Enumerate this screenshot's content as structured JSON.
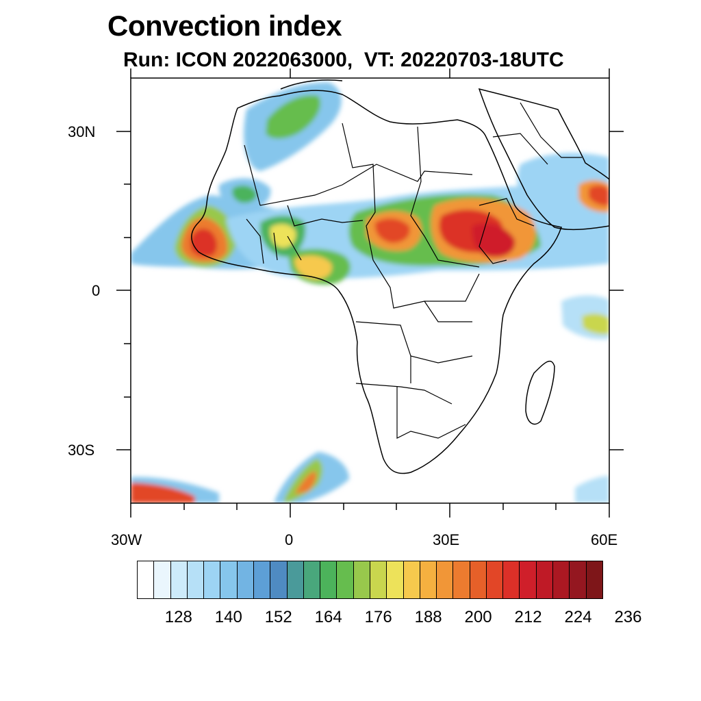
{
  "figure": {
    "title": "Convection index",
    "subtitle": "Run: ICON 2022063000,  VT: 20220703-18UTC"
  },
  "axes": {
    "lon_labels": [
      "30W",
      "0",
      "30E",
      "60E"
    ],
    "lat_labels": [
      "30N",
      "0",
      "30S"
    ]
  },
  "legend": {
    "tick_labels": [
      "128",
      "140",
      "152",
      "164",
      "176",
      "188",
      "200",
      "212",
      "224",
      "236"
    ],
    "colors": [
      "#ffffff",
      "#eaf6fd",
      "#cdebfa",
      "#b6e0f7",
      "#9dd4f4",
      "#86c6ec",
      "#72b4e3",
      "#5d9fd6",
      "#4f8bc2",
      "#4a9a9a",
      "#49a77c",
      "#4cb35b",
      "#66bd4e",
      "#98c84c",
      "#c9d64e",
      "#ede25a",
      "#f6c94d",
      "#f5b040",
      "#f19637",
      "#ec7b2f",
      "#e66029",
      "#e24627",
      "#dc3028",
      "#cf1f2a",
      "#bf1a26",
      "#ab1822",
      "#941720",
      "#7e1619"
    ]
  },
  "chart_data": {
    "type": "heatmap",
    "title": "Convection index",
    "subtitle": "Run: ICON 2022063000,  VT: 20220703-18UTC",
    "projection": "cylindrical equidistant",
    "lon_range": [
      -30,
      60
    ],
    "lat_range": [
      -40,
      40
    ],
    "x_ticks": [
      "30W",
      "0",
      "30E",
      "60E"
    ],
    "y_ticks": [
      "30N",
      "0",
      "30S"
    ],
    "colorbar_levels": [
      128,
      140,
      152,
      164,
      176,
      188,
      200,
      212,
      224,
      236
    ],
    "regions": [
      {
        "lon": [
          -25,
          -12
        ],
        "lat": [
          7,
          16
        ],
        "max": 236
      },
      {
        "lon": [
          5,
          24
        ],
        "lat": [
          6,
          15
        ],
        "max": 224
      },
      {
        "lon": [
          27,
          45
        ],
        "lat": [
          5,
          18
        ],
        "max": 236
      },
      {
        "lon": [
          2,
          8
        ],
        "lat": [
          3,
          8
        ],
        "max": 224
      },
      {
        "lon": [
          52,
          60
        ],
        "lat": [
          14,
          22
        ],
        "max": 230
      },
      {
        "lon": [
          -30,
          -22
        ],
        "lat": [
          -40,
          -35
        ],
        "max": 236
      },
      {
        "lon": [
          -4,
          12
        ],
        "lat": [
          -40,
          -29
        ],
        "max": 210
      },
      {
        "lon": [
          -2,
          12
        ],
        "lat": [
          28,
          38
        ],
        "max": 176
      },
      {
        "lon": [
          52,
          60
        ],
        "lat": [
          -8,
          0
        ],
        "max": 200
      }
    ]
  }
}
